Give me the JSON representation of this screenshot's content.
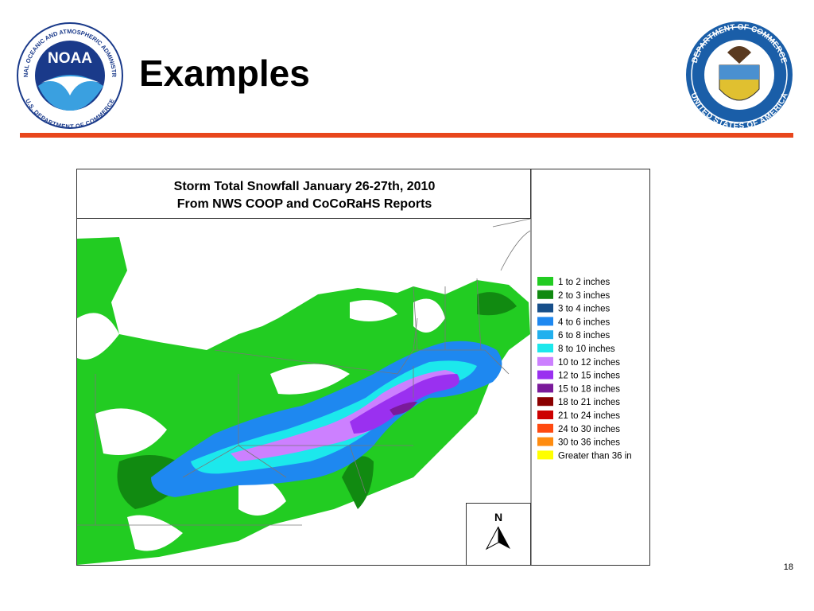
{
  "header": {
    "title": "Examples",
    "noaa_logo": {
      "acronym": "NOAA",
      "ring_top": "NATIONAL OCEANIC AND ATMOSPHERIC ADMINISTRATION",
      "ring_bottom": "U.S. DEPARTMENT OF COMMERCE"
    },
    "commerce_seal": {
      "ring_top": "DEPARTMENT OF COMMERCE",
      "ring_bottom": "UNITED STATES OF AMERICA"
    }
  },
  "map": {
    "title_lines": [
      "Storm Total Snowfall January 26-27th, 2010",
      "From NWS COOP and CoCoRaHS Reports"
    ],
    "north_label": "N",
    "legend": [
      {
        "label": "1 to 2 inches",
        "color": "#22cc22"
      },
      {
        "label": "2 to 3 inches",
        "color": "#118a11"
      },
      {
        "label": "3 to 4 inches",
        "color": "#174f8a"
      },
      {
        "label": "4 to 6 inches",
        "color": "#1e88f0"
      },
      {
        "label": "6 to 8 inches",
        "color": "#22b0ee"
      },
      {
        "label": "8 to 10 inches",
        "color": "#1ce8ec"
      },
      {
        "label": "10 to 12 inches",
        "color": "#cc80ff"
      },
      {
        "label": "12 to 15 inches",
        "color": "#9a30f0"
      },
      {
        "label": "15 to 18 inches",
        "color": "#7a1a9a"
      },
      {
        "label": "18 to 21 inches",
        "color": "#8b0000"
      },
      {
        "label": "21 to 24 inches",
        "color": "#cc0000"
      },
      {
        "label": "24 to 30 inches",
        "color": "#ff4a10"
      },
      {
        "label": "30 to 36 inches",
        "color": "#ff8c10"
      },
      {
        "label": "Greater than 36 in",
        "color": "#ffff00"
      }
    ]
  },
  "footer": {
    "page_number": "18"
  }
}
